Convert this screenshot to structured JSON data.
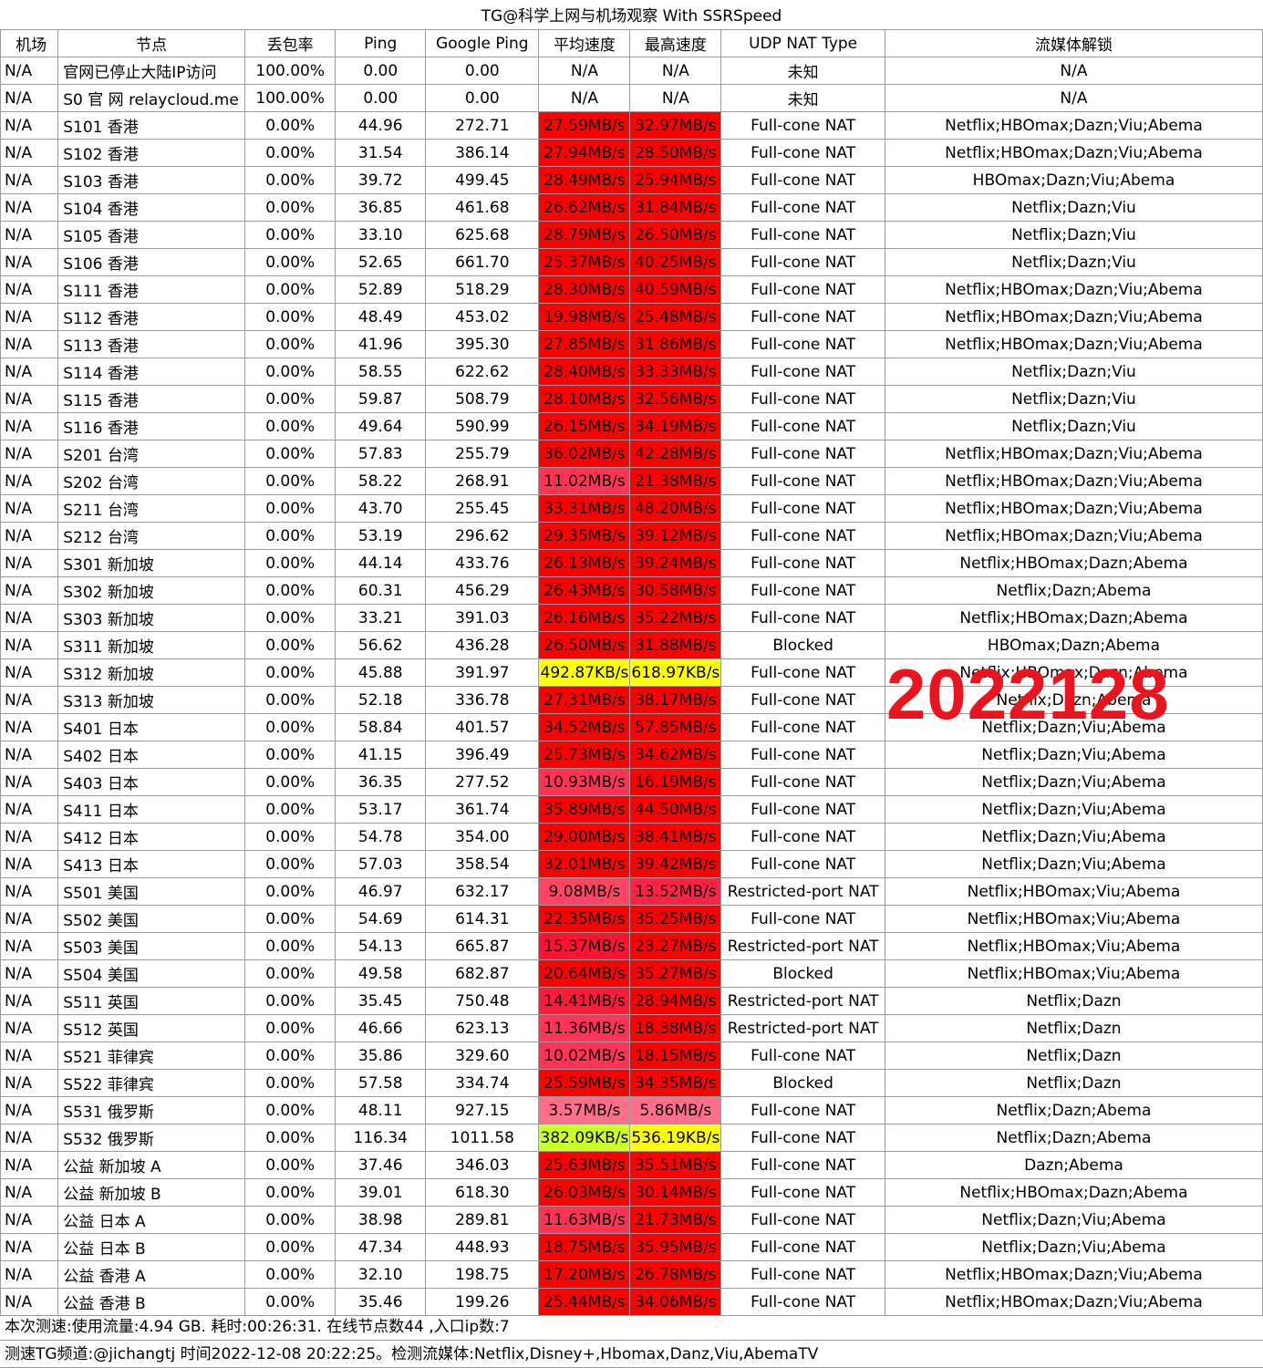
{
  "title": "TG@科学上网与机场观察 With SSRSpeed",
  "headers": [
    "机场",
    "节点",
    "丢包率",
    "Ping",
    "Google Ping",
    "平均速度",
    "最高速度",
    "UDP NAT Type",
    "流媒体解锁"
  ],
  "rows": [
    {
      "ap": "N/A",
      "node": "官网已停止大陆IP访问",
      "loss": "100.00%",
      "ping": "0.00",
      "gping": "0.00",
      "avg": "N/A",
      "max": "N/A",
      "nat": "未知",
      "media": "N/A",
      "avg_color": "#ffffff",
      "max_color": "#ffffff"
    },
    {
      "ap": "N/A",
      "node": "S0 官 网 relaycloud.me",
      "loss": "100.00%",
      "ping": "0.00",
      "gping": "0.00",
      "avg": "N/A",
      "max": "N/A",
      "nat": "未知",
      "media": "N/A",
      "avg_color": "#ffffff",
      "max_color": "#ffffff"
    },
    {
      "ap": "N/A",
      "node": "S101 香港",
      "loss": "0.00%",
      "ping": "44.96",
      "gping": "272.71",
      "avg": "27.59MB/s",
      "max": "32.97MB/s",
      "nat": "Full-cone NAT",
      "media": "Netflix;HBOmax;Dazn;Viu;Abema",
      "avg_color": "#ff0000",
      "max_color": "#ff0000"
    },
    {
      "ap": "N/A",
      "node": "S102 香港",
      "loss": "0.00%",
      "ping": "31.54",
      "gping": "386.14",
      "avg": "27.94MB/s",
      "max": "28.50MB/s",
      "nat": "Full-cone NAT",
      "media": "Netflix;HBOmax;Dazn;Viu;Abema",
      "avg_color": "#ff0000",
      "max_color": "#ff0000"
    },
    {
      "ap": "N/A",
      "node": "S103 香港",
      "loss": "0.00%",
      "ping": "39.72",
      "gping": "499.45",
      "avg": "28.49MB/s",
      "max": "25.94MB/s",
      "nat": "Full-cone NAT",
      "media": "HBOmax;Dazn;Viu;Abema",
      "avg_color": "#ff0000",
      "max_color": "#ff0000"
    },
    {
      "ap": "N/A",
      "node": "S104 香港",
      "loss": "0.00%",
      "ping": "36.85",
      "gping": "461.68",
      "avg": "26.62MB/s",
      "max": "31.84MB/s",
      "nat": "Full-cone NAT",
      "media": "Netflix;Dazn;Viu",
      "avg_color": "#ff0000",
      "max_color": "#ff0000"
    },
    {
      "ap": "N/A",
      "node": "S105 香港",
      "loss": "0.00%",
      "ping": "33.10",
      "gping": "625.68",
      "avg": "28.79MB/s",
      "max": "26.50MB/s",
      "nat": "Full-cone NAT",
      "media": "Netflix;Dazn;Viu",
      "avg_color": "#ff0000",
      "max_color": "#ff0000"
    },
    {
      "ap": "N/A",
      "node": "S106 香港",
      "loss": "0.00%",
      "ping": "52.65",
      "gping": "661.70",
      "avg": "25.37MB/s",
      "max": "40.25MB/s",
      "nat": "Full-cone NAT",
      "media": "Netflix;Dazn;Viu",
      "avg_color": "#ff0000",
      "max_color": "#ff0000"
    },
    {
      "ap": "N/A",
      "node": "S111 香港",
      "loss": "0.00%",
      "ping": "52.89",
      "gping": "518.29",
      "avg": "28.30MB/s",
      "max": "40.59MB/s",
      "nat": "Full-cone NAT",
      "media": "Netflix;HBOmax;Dazn;Viu;Abema",
      "avg_color": "#ff0000",
      "max_color": "#ff0000"
    },
    {
      "ap": "N/A",
      "node": "S112 香港",
      "loss": "0.00%",
      "ping": "48.49",
      "gping": "453.02",
      "avg": "19.98MB/s",
      "max": "25.48MB/s",
      "nat": "Full-cone NAT",
      "media": "Netflix;HBOmax;Dazn;Viu;Abema",
      "avg_color": "#ff0000",
      "max_color": "#ff0000"
    },
    {
      "ap": "N/A",
      "node": "S113 香港",
      "loss": "0.00%",
      "ping": "41.96",
      "gping": "395.30",
      "avg": "27.85MB/s",
      "max": "31.86MB/s",
      "nat": "Full-cone NAT",
      "media": "Netflix;HBOmax;Dazn;Viu;Abema",
      "avg_color": "#ff0000",
      "max_color": "#ff0000"
    },
    {
      "ap": "N/A",
      "node": "S114 香港",
      "loss": "0.00%",
      "ping": "58.55",
      "gping": "622.62",
      "avg": "28.40MB/s",
      "max": "33.33MB/s",
      "nat": "Full-cone NAT",
      "media": "Netflix;Dazn;Viu",
      "avg_color": "#ff0000",
      "max_color": "#ff0000"
    },
    {
      "ap": "N/A",
      "node": "S115 香港",
      "loss": "0.00%",
      "ping": "59.87",
      "gping": "508.79",
      "avg": "28.10MB/s",
      "max": "32.56MB/s",
      "nat": "Full-cone NAT",
      "media": "Netflix;Dazn;Viu",
      "avg_color": "#ff0000",
      "max_color": "#ff0000"
    },
    {
      "ap": "N/A",
      "node": "S116 香港",
      "loss": "0.00%",
      "ping": "49.64",
      "gping": "590.99",
      "avg": "26.15MB/s",
      "max": "34.19MB/s",
      "nat": "Full-cone NAT",
      "media": "Netflix;Dazn;Viu",
      "avg_color": "#ff0000",
      "max_color": "#ff0000"
    },
    {
      "ap": "N/A",
      "node": "S201 台湾",
      "loss": "0.00%",
      "ping": "57.83",
      "gping": "255.79",
      "avg": "36.02MB/s",
      "max": "42.28MB/s",
      "nat": "Full-cone NAT",
      "media": "Netflix;HBOmax;Dazn;Viu;Abema",
      "avg_color": "#ff0000",
      "max_color": "#ff0000"
    },
    {
      "ap": "N/A",
      "node": "S202 台湾",
      "loss": "0.00%",
      "ping": "58.22",
      "gping": "268.91",
      "avg": "11.02MB/s",
      "max": "21.38MB/s",
      "nat": "Full-cone NAT",
      "media": "Netflix;HBOmax;Dazn;Viu;Abema",
      "avg_color": "#ff3355",
      "max_color": "#ff0000"
    },
    {
      "ap": "N/A",
      "node": "S211 台湾",
      "loss": "0.00%",
      "ping": "43.70",
      "gping": "255.45",
      "avg": "33.31MB/s",
      "max": "48.20MB/s",
      "nat": "Full-cone NAT",
      "media": "Netflix;HBOmax;Dazn;Viu;Abema",
      "avg_color": "#ff0000",
      "max_color": "#ff0000"
    },
    {
      "ap": "N/A",
      "node": "S212 台湾",
      "loss": "0.00%",
      "ping": "53.19",
      "gping": "296.62",
      "avg": "29.35MB/s",
      "max": "39.12MB/s",
      "nat": "Full-cone NAT",
      "media": "Netflix;HBOmax;Dazn;Viu;Abema",
      "avg_color": "#ff0000",
      "max_color": "#ff0000"
    },
    {
      "ap": "N/A",
      "node": "S301 新加坡",
      "loss": "0.00%",
      "ping": "44.14",
      "gping": "433.76",
      "avg": "26.13MB/s",
      "max": "39.24MB/s",
      "nat": "Full-cone NAT",
      "media": "Netflix;HBOmax;Dazn;Abema",
      "avg_color": "#ff0000",
      "max_color": "#ff0000"
    },
    {
      "ap": "N/A",
      "node": "S302 新加坡",
      "loss": "0.00%",
      "ping": "60.31",
      "gping": "456.29",
      "avg": "26.43MB/s",
      "max": "30.58MB/s",
      "nat": "Full-cone NAT",
      "media": "Netflix;Dazn;Abema",
      "avg_color": "#ff0000",
      "max_color": "#ff0000"
    },
    {
      "ap": "N/A",
      "node": "S303 新加坡",
      "loss": "0.00%",
      "ping": "33.21",
      "gping": "391.03",
      "avg": "26.16MB/s",
      "max": "35.22MB/s",
      "nat": "Full-cone NAT",
      "media": "Netflix;HBOmax;Dazn;Abema",
      "avg_color": "#ff0000",
      "max_color": "#ff0000"
    },
    {
      "ap": "N/A",
      "node": "S311 新加坡",
      "loss": "0.00%",
      "ping": "56.62",
      "gping": "436.28",
      "avg": "26.50MB/s",
      "max": "31.88MB/s",
      "nat": "Blocked",
      "media": "HBOmax;Dazn;Abema",
      "avg_color": "#ff0000",
      "max_color": "#ff0000"
    },
    {
      "ap": "N/A",
      "node": "S312 新加坡",
      "loss": "0.00%",
      "ping": "45.88",
      "gping": "391.97",
      "avg": "492.87KB/s",
      "max": "618.97KB/s",
      "nat": "Full-cone NAT",
      "media": "Netflix;HBOmax;Dazn;Abema",
      "avg_color": "#ffff00",
      "max_color": "#ffff00"
    },
    {
      "ap": "N/A",
      "node": "S313 新加坡",
      "loss": "0.00%",
      "ping": "52.18",
      "gping": "336.78",
      "avg": "27.31MB/s",
      "max": "38.17MB/s",
      "nat": "Full-cone NAT",
      "media": "Netflix;Dazn;Abema",
      "avg_color": "#ff0000",
      "max_color": "#ff0000"
    },
    {
      "ap": "N/A",
      "node": "S401 日本",
      "loss": "0.00%",
      "ping": "58.84",
      "gping": "401.57",
      "avg": "34.52MB/s",
      "max": "57.85MB/s",
      "nat": "Full-cone NAT",
      "media": "Netflix;Dazn;Viu;Abema",
      "avg_color": "#ff0000",
      "max_color": "#ff0000"
    },
    {
      "ap": "N/A",
      "node": "S402 日本",
      "loss": "0.00%",
      "ping": "41.15",
      "gping": "396.49",
      "avg": "25.73MB/s",
      "max": "34.62MB/s",
      "nat": "Full-cone NAT",
      "media": "Netflix;Dazn;Viu;Abema",
      "avg_color": "#ff0000",
      "max_color": "#ff0000"
    },
    {
      "ap": "N/A",
      "node": "S403 日本",
      "loss": "0.00%",
      "ping": "36.35",
      "gping": "277.52",
      "avg": "10.93MB/s",
      "max": "16.19MB/s",
      "nat": "Full-cone NAT",
      "media": "Netflix;Dazn;Viu;Abema",
      "avg_color": "#ff3355",
      "max_color": "#ff0000"
    },
    {
      "ap": "N/A",
      "node": "S411 日本",
      "loss": "0.00%",
      "ping": "53.17",
      "gping": "361.74",
      "avg": "35.89MB/s",
      "max": "44.50MB/s",
      "nat": "Full-cone NAT",
      "media": "Netflix;Dazn;Viu;Abema",
      "avg_color": "#ff0000",
      "max_color": "#ff0000"
    },
    {
      "ap": "N/A",
      "node": "S412 日本",
      "loss": "0.00%",
      "ping": "54.78",
      "gping": "354.00",
      "avg": "29.00MB/s",
      "max": "38.41MB/s",
      "nat": "Full-cone NAT",
      "media": "Netflix;Dazn;Viu;Abema",
      "avg_color": "#ff0000",
      "max_color": "#ff0000"
    },
    {
      "ap": "N/A",
      "node": "S413 日本",
      "loss": "0.00%",
      "ping": "57.03",
      "gping": "358.54",
      "avg": "32.01MB/s",
      "max": "39.42MB/s",
      "nat": "Full-cone NAT",
      "media": "Netflix;Dazn;Viu;Abema",
      "avg_color": "#ff0000",
      "max_color": "#ff0000"
    },
    {
      "ap": "N/A",
      "node": "S501 美国",
      "loss": "0.00%",
      "ping": "46.97",
      "gping": "632.17",
      "avg": "9.08MB/s",
      "max": "13.52MB/s",
      "nat": "Restricted-port NAT",
      "media": "Netflix;HBOmax;Viu;Abema",
      "avg_color": "#ff4466",
      "max_color": "#ff2244"
    },
    {
      "ap": "N/A",
      "node": "S502 美国",
      "loss": "0.00%",
      "ping": "54.69",
      "gping": "614.31",
      "avg": "22.35MB/s",
      "max": "35.25MB/s",
      "nat": "Full-cone NAT",
      "media": "Netflix;HBOmax;Viu;Abema",
      "avg_color": "#ff0000",
      "max_color": "#ff0000"
    },
    {
      "ap": "N/A",
      "node": "S503 美国",
      "loss": "0.00%",
      "ping": "54.13",
      "gping": "665.87",
      "avg": "15.37MB/s",
      "max": "23.27MB/s",
      "nat": "Restricted-port NAT",
      "media": "Netflix;HBOmax;Viu;Abema",
      "avg_color": "#ff1133",
      "max_color": "#ff0000"
    },
    {
      "ap": "N/A",
      "node": "S504 美国",
      "loss": "0.00%",
      "ping": "49.58",
      "gping": "682.87",
      "avg": "20.64MB/s",
      "max": "35.27MB/s",
      "nat": "Blocked",
      "media": "Netflix;HBOmax;Viu;Abema",
      "avg_color": "#ff0000",
      "max_color": "#ff0000"
    },
    {
      "ap": "N/A",
      "node": "S511 英国",
      "loss": "0.00%",
      "ping": "35.45",
      "gping": "750.48",
      "avg": "14.41MB/s",
      "max": "28.94MB/s",
      "nat": "Restricted-port NAT",
      "media": "Netflix;Dazn",
      "avg_color": "#ff1a3a",
      "max_color": "#ff0000"
    },
    {
      "ap": "N/A",
      "node": "S512 英国",
      "loss": "0.00%",
      "ping": "46.66",
      "gping": "623.13",
      "avg": "11.36MB/s",
      "max": "18.38MB/s",
      "nat": "Restricted-port NAT",
      "media": "Netflix;Dazn",
      "avg_color": "#ff3355",
      "max_color": "#ff0000"
    },
    {
      "ap": "N/A",
      "node": "S521 菲律宾",
      "loss": "0.00%",
      "ping": "35.86",
      "gping": "329.60",
      "avg": "10.02MB/s",
      "max": "18.15MB/s",
      "nat": "Full-cone NAT",
      "media": "Netflix;Dazn",
      "avg_color": "#ff3355",
      "max_color": "#ff0000"
    },
    {
      "ap": "N/A",
      "node": "S522 菲律宾",
      "loss": "0.00%",
      "ping": "57.58",
      "gping": "334.74",
      "avg": "25.59MB/s",
      "max": "34.35MB/s",
      "nat": "Blocked",
      "media": "Netflix;Dazn",
      "avg_color": "#ff0000",
      "max_color": "#ff0000"
    },
    {
      "ap": "N/A",
      "node": "S531 俄罗斯",
      "loss": "0.00%",
      "ping": "48.11",
      "gping": "927.15",
      "avg": "3.57MB/s",
      "max": "5.86MB/s",
      "nat": "Full-cone NAT",
      "media": "Netflix;Dazn;Abema",
      "avg_color": "#ff6e8c",
      "max_color": "#ff6e8c"
    },
    {
      "ap": "N/A",
      "node": "S532 俄罗斯",
      "loss": "0.00%",
      "ping": "116.34",
      "gping": "1011.58",
      "avg": "382.09KB/s",
      "max": "536.19KB/s",
      "nat": "Full-cone NAT",
      "media": "Netflix;Dazn;Abema",
      "avg_color": "#ccff22",
      "max_color": "#ffff00"
    },
    {
      "ap": "N/A",
      "node": "公益 新加坡 A",
      "loss": "0.00%",
      "ping": "37.46",
      "gping": "346.03",
      "avg": "25.63MB/s",
      "max": "35.51MB/s",
      "nat": "Full-cone NAT",
      "media": "Dazn;Abema",
      "avg_color": "#ff0000",
      "max_color": "#ff0000"
    },
    {
      "ap": "N/A",
      "node": "公益 新加坡 B",
      "loss": "0.00%",
      "ping": "39.01",
      "gping": "618.30",
      "avg": "26.03MB/s",
      "max": "30.14MB/s",
      "nat": "Full-cone NAT",
      "media": "Netflix;HBOmax;Dazn;Abema",
      "avg_color": "#ff0000",
      "max_color": "#ff0000"
    },
    {
      "ap": "N/A",
      "node": "公益 日本 A",
      "loss": "0.00%",
      "ping": "38.98",
      "gping": "289.81",
      "avg": "11.63MB/s",
      "max": "21.73MB/s",
      "nat": "Full-cone NAT",
      "media": "Netflix;Dazn;Viu;Abema",
      "avg_color": "#ff3355",
      "max_color": "#ff0000"
    },
    {
      "ap": "N/A",
      "node": "公益 日本 B",
      "loss": "0.00%",
      "ping": "47.34",
      "gping": "448.93",
      "avg": "18.75MB/s",
      "max": "35.95MB/s",
      "nat": "Full-cone NAT",
      "media": "Netflix;Dazn;Viu;Abema",
      "avg_color": "#ff0000",
      "max_color": "#ff0000"
    },
    {
      "ap": "N/A",
      "node": "公益 香港 A",
      "loss": "0.00%",
      "ping": "32.10",
      "gping": "198.75",
      "avg": "17.20MB/s",
      "max": "26.78MB/s",
      "nat": "Full-cone NAT",
      "media": "Netflix;HBOmax;Dazn;Viu;Abema",
      "avg_color": "#ff0000",
      "max_color": "#ff0000"
    },
    {
      "ap": "N/A",
      "node": "公益 香港 B",
      "loss": "0.00%",
      "ping": "35.46",
      "gping": "199.26",
      "avg": "25.44MB/s",
      "max": "34.06MB/s",
      "nat": "Full-cone NAT",
      "media": "Netflix;HBOmax;Dazn;Viu;Abema",
      "avg_color": "#ff0000",
      "max_color": "#ff0000"
    }
  ],
  "footer": {
    "summary": "本次测速:使用流量:4.94 GB. 耗时:00:26:31. 在线节点数44 ,入口ip数:7",
    "channel": "测速TG频道:@jichangtj 时间2022-12-08 20:22:25。检测流媒体:Netflix,Disney+,Hbomax,Danz,Viu,AbemaTV"
  },
  "watermark": "2022128"
}
